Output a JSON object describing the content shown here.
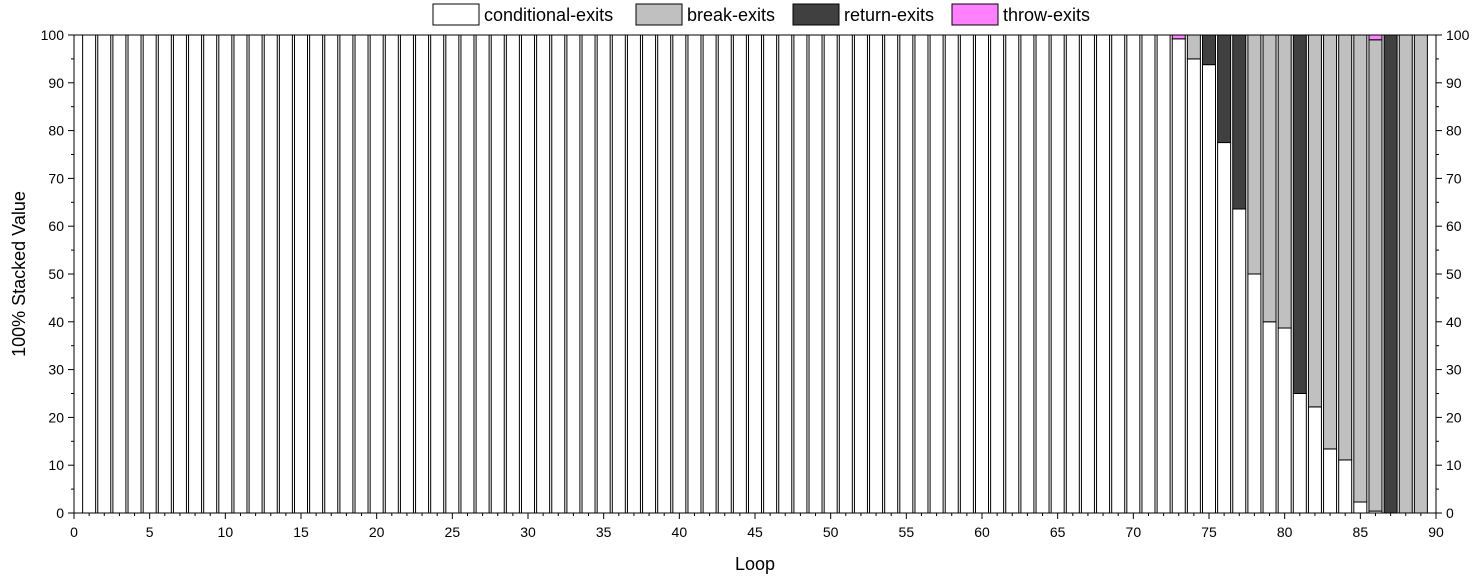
{
  "chart_data": {
    "type": "bar",
    "stacked": "percent",
    "xlabel": "Loop",
    "ylabel": "100% Stacked Value",
    "xlim": [
      0,
      90
    ],
    "ylim": [
      0,
      100
    ],
    "x_ticks": [
      "0",
      "5",
      "10",
      "15",
      "20",
      "25",
      "30",
      "35",
      "40",
      "45",
      "50",
      "55",
      "60",
      "65",
      "70",
      "75",
      "80",
      "85",
      "90"
    ],
    "y_ticks": [
      "0",
      "10",
      "20",
      "30",
      "40",
      "50",
      "60",
      "70",
      "80",
      "90",
      "100"
    ],
    "legend_position": "top",
    "grid": false,
    "colors": {
      "conditional-exits": "#ffffff",
      "break-exits": "#c0c0c0",
      "return-exits": "#404040",
      "throw-exits": "#ff80ff"
    },
    "legend": [
      "conditional-exits",
      "break-exits",
      "return-exits",
      "throw-exits"
    ],
    "x": [
      1,
      2,
      3,
      4,
      5,
      6,
      7,
      8,
      9,
      10,
      11,
      12,
      13,
      14,
      15,
      16,
      17,
      18,
      19,
      20,
      21,
      22,
      23,
      24,
      25,
      26,
      27,
      28,
      29,
      30,
      31,
      32,
      33,
      34,
      35,
      36,
      37,
      38,
      39,
      40,
      41,
      42,
      43,
      44,
      45,
      46,
      47,
      48,
      49,
      50,
      51,
      52,
      53,
      54,
      55,
      56,
      57,
      58,
      59,
      60,
      61,
      62,
      63,
      64,
      65,
      66,
      67,
      68,
      69,
      70,
      71,
      72,
      73,
      74,
      75,
      76,
      77,
      78,
      79,
      80,
      81,
      82,
      83,
      84,
      85,
      86,
      87,
      88,
      89
    ],
    "series": [
      {
        "name": "conditional-exits",
        "values": [
          100,
          100,
          100,
          100,
          100,
          100,
          100,
          100,
          100,
          100,
          100,
          100,
          100,
          100,
          100,
          100,
          100,
          100,
          100,
          100,
          100,
          100,
          100,
          100,
          100,
          100,
          100,
          100,
          100,
          100,
          100,
          100,
          100,
          100,
          100,
          100,
          100,
          100,
          100,
          100,
          100,
          100,
          100,
          100,
          100,
          100,
          100,
          100,
          100,
          100,
          100,
          100,
          100,
          100,
          100,
          100,
          100,
          100,
          100,
          100,
          100,
          100,
          100,
          100,
          100,
          100,
          100,
          100,
          100,
          100,
          100,
          100,
          99.2,
          95,
          93.8,
          77.5,
          63.6,
          50,
          40,
          38.7,
          25,
          22.2,
          13.4,
          11.1,
          2.3,
          0.4,
          0,
          0,
          0
        ]
      },
      {
        "name": "break-exits",
        "values": [
          0,
          0,
          0,
          0,
          0,
          0,
          0,
          0,
          0,
          0,
          0,
          0,
          0,
          0,
          0,
          0,
          0,
          0,
          0,
          0,
          0,
          0,
          0,
          0,
          0,
          0,
          0,
          0,
          0,
          0,
          0,
          0,
          0,
          0,
          0,
          0,
          0,
          0,
          0,
          0,
          0,
          0,
          0,
          0,
          0,
          0,
          0,
          0,
          0,
          0,
          0,
          0,
          0,
          0,
          0,
          0,
          0,
          0,
          0,
          0,
          0,
          0,
          0,
          0,
          0,
          0,
          0,
          0,
          0,
          0,
          0,
          0,
          0,
          5,
          0,
          0,
          0,
          50,
          60,
          61.3,
          0,
          77.8,
          86.6,
          88.9,
          97.7,
          98.6,
          0,
          100,
          100
        ]
      },
      {
        "name": "return-exits",
        "values": [
          0,
          0,
          0,
          0,
          0,
          0,
          0,
          0,
          0,
          0,
          0,
          0,
          0,
          0,
          0,
          0,
          0,
          0,
          0,
          0,
          0,
          0,
          0,
          0,
          0,
          0,
          0,
          0,
          0,
          0,
          0,
          0,
          0,
          0,
          0,
          0,
          0,
          0,
          0,
          0,
          0,
          0,
          0,
          0,
          0,
          0,
          0,
          0,
          0,
          0,
          0,
          0,
          0,
          0,
          0,
          0,
          0,
          0,
          0,
          0,
          0,
          0,
          0,
          0,
          0,
          0,
          0,
          0,
          0,
          0,
          0,
          0,
          0,
          0,
          6.2,
          22.5,
          36.4,
          0,
          0,
          0,
          75,
          0,
          0,
          0,
          0,
          0,
          100,
          0,
          0
        ]
      },
      {
        "name": "throw-exits",
        "values": [
          0,
          0,
          0,
          0,
          0,
          0,
          0,
          0,
          0,
          0,
          0,
          0,
          0,
          0,
          0,
          0,
          0,
          0,
          0,
          0,
          0,
          0,
          0,
          0,
          0,
          0,
          0,
          0,
          0,
          0,
          0,
          0,
          0,
          0,
          0,
          0,
          0,
          0,
          0,
          0,
          0,
          0,
          0,
          0,
          0,
          0,
          0,
          0,
          0,
          0,
          0,
          0,
          0,
          0,
          0,
          0,
          0,
          0,
          0,
          0,
          0,
          0,
          0,
          0,
          0,
          0,
          0,
          0,
          0,
          0,
          0,
          0,
          0.8,
          0,
          0,
          0,
          0,
          0,
          0,
          0,
          0,
          0,
          0,
          0,
          0,
          1,
          0,
          0,
          0
        ]
      }
    ]
  }
}
